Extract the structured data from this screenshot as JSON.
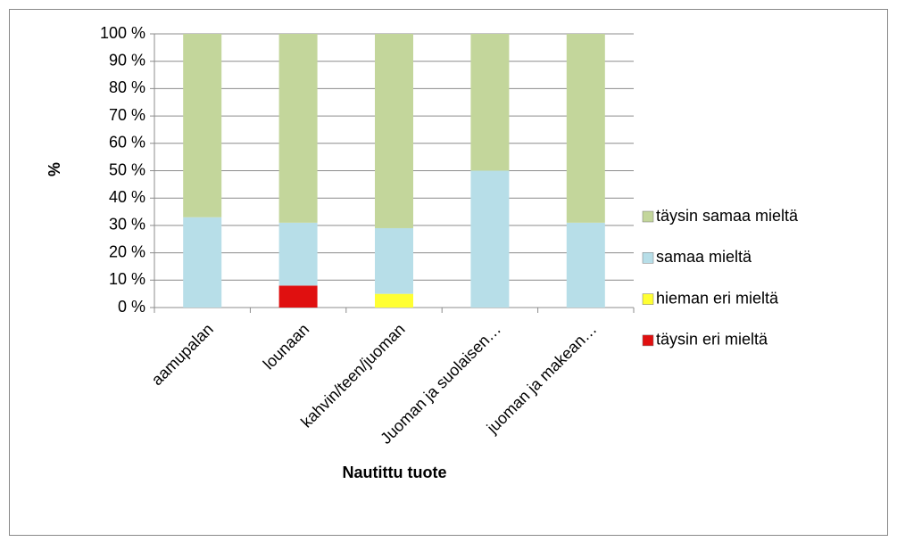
{
  "chart_data": {
    "type": "stacked_bar",
    "ylabel": "%",
    "xlabel": "Nautittu tuote",
    "categories": [
      "aamupalan",
      "lounaan",
      "kahvin/teen/juoman",
      "Juoman ja suolaisen…",
      "juoman ja makean…"
    ],
    "series": [
      {
        "name": "täysin eri mieltä",
        "color": "#e01010",
        "values": [
          0,
          8,
          0,
          0,
          0
        ]
      },
      {
        "name": "hieman eri mieltä",
        "color": "#ffff33",
        "values": [
          0,
          0,
          5,
          0,
          0
        ]
      },
      {
        "name": "samaa mieltä",
        "color": "#b7dee8",
        "values": [
          33,
          23,
          24,
          50,
          31
        ]
      },
      {
        "name": "täysin samaa mieltä",
        "color": "#c3d69b",
        "values": [
          67,
          69,
          71,
          50,
          69
        ]
      }
    ],
    "ylim": [
      0,
      100
    ],
    "yticks": [
      {
        "value": 0,
        "label": "0 %"
      },
      {
        "value": 10,
        "label": "10 %"
      },
      {
        "value": 20,
        "label": "20 %"
      },
      {
        "value": 30,
        "label": "30 %"
      },
      {
        "value": 40,
        "label": "40 %"
      },
      {
        "value": 50,
        "label": "50 %"
      },
      {
        "value": 60,
        "label": "60 %"
      },
      {
        "value": 70,
        "label": "70 %"
      },
      {
        "value": 80,
        "label": "80 %"
      },
      {
        "value": 90,
        "label": "90 %"
      },
      {
        "value": 100,
        "label": "100 %"
      }
    ],
    "grid": true,
    "legend": "right"
  }
}
